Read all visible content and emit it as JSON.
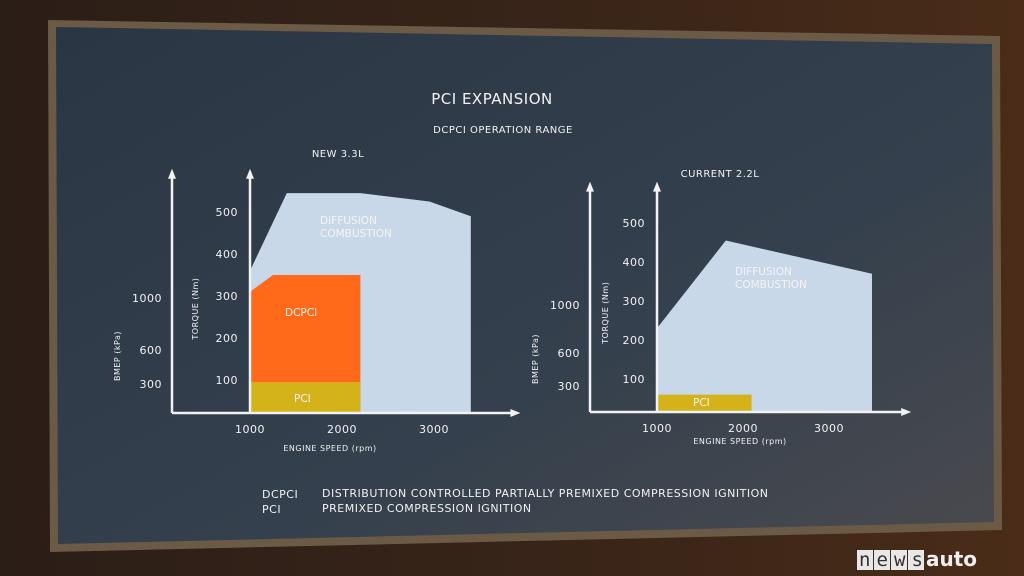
{
  "slide": {
    "title": "PCI EXPANSION",
    "subtitle": "DCPCI OPERATION RANGE",
    "legend": [
      {
        "abbr": "DCPCI",
        "text": "DISTRIBUTION CONTROLLED PARTIALLY PREMIXED COMPRESSION IGNITION"
      },
      {
        "abbr": "PCI",
        "text": "PREMIXED COMPRESSION IGNITION"
      }
    ]
  },
  "watermark": {
    "part1": "news",
    "part2": "auto"
  },
  "colors": {
    "diffusion": "#c9d8e8",
    "dcpci": "#ff6a1a",
    "pci": "#d4b21a",
    "slide": "#2c3846"
  },
  "chart_data": [
    {
      "type": "area",
      "title": "NEW 3.3L",
      "xlabel": "ENGINE SPEED (rpm)",
      "ylabel": "TORQUE (Nm)",
      "y2label": "BMEP (kPa)",
      "xticks": [
        1000,
        2000,
        3000
      ],
      "yticks": [
        100,
        200,
        300,
        400,
        500
      ],
      "y2ticks": [
        300,
        600,
        1000
      ],
      "xlim": [
        0,
        3700
      ],
      "ylim": [
        0,
        560
      ],
      "regions": [
        {
          "name": "DIFFUSION COMBUSTION",
          "label": [
            "DIFFUSION",
            "COMBUSTION"
          ],
          "points": [
            [
              1000,
              0
            ],
            [
              1000,
              360
            ],
            [
              1400,
              545
            ],
            [
              2200,
              545
            ],
            [
              2950,
              525
            ],
            [
              3400,
              490
            ],
            [
              3400,
              0
            ]
          ]
        },
        {
          "name": "DCPCI",
          "label": [
            "DCPCI"
          ],
          "points": [
            [
              1000,
              0
            ],
            [
              1000,
              310
            ],
            [
              1250,
              350
            ],
            [
              2200,
              350
            ],
            [
              2200,
              0
            ]
          ]
        },
        {
          "name": "PCI",
          "label": [
            "PCI"
          ],
          "points": [
            [
              1000,
              0
            ],
            [
              1000,
              95
            ],
            [
              2200,
              95
            ],
            [
              2200,
              0
            ]
          ]
        }
      ]
    },
    {
      "type": "area",
      "title": "CURRENT 2.2L",
      "xlabel": "ENGINE SPEED (rpm)",
      "ylabel": "TORQUE (Nm)",
      "y2label": "BMEP (kPa)",
      "xticks": [
        1000,
        2000,
        3000
      ],
      "yticks": [
        100,
        200,
        300,
        400,
        500
      ],
      "y2ticks": [
        300,
        600,
        1000
      ],
      "xlim": [
        0,
        3700
      ],
      "ylim": [
        0,
        560
      ],
      "regions": [
        {
          "name": "DIFFUSION COMBUSTION",
          "label": [
            "DIFFUSION",
            "COMBUSTION"
          ],
          "points": [
            [
              1000,
              0
            ],
            [
              1000,
              230
            ],
            [
              1800,
              455
            ],
            [
              3500,
              370
            ],
            [
              3500,
              0
            ]
          ]
        },
        {
          "name": "PCI",
          "label": [
            "PCI"
          ],
          "points": [
            [
              1000,
              0
            ],
            [
              1000,
              60
            ],
            [
              2100,
              60
            ],
            [
              2100,
              0
            ]
          ]
        }
      ]
    }
  ]
}
